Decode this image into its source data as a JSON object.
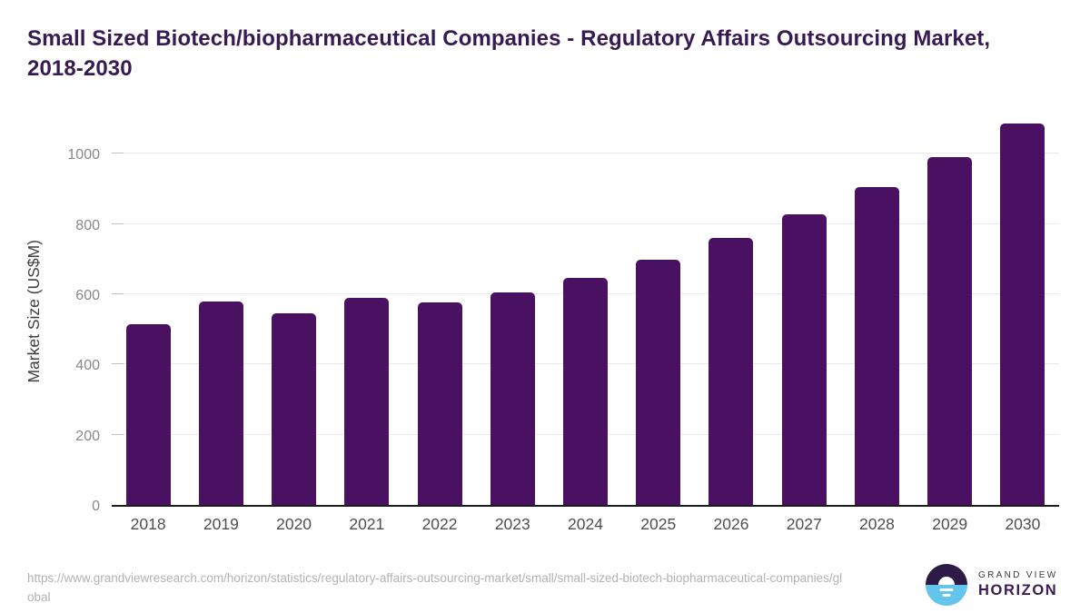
{
  "header": {
    "title_line1": "Small Sized Biotech/biopharmaceutical Companies - Regulatory Affairs Outsourcing Market,",
    "title_line2": "2018-2030"
  },
  "chart_data": {
    "type": "bar",
    "title": "Small Sized Biotech/biopharmaceutical Companies - Regulatory Affairs Outsourcing Market, 2018-2030",
    "categories": [
      "2018",
      "2019",
      "2020",
      "2021",
      "2022",
      "2023",
      "2024",
      "2025",
      "2026",
      "2027",
      "2028",
      "2029",
      "2030"
    ],
    "values": [
      515,
      580,
      545,
      589,
      577,
      605,
      646,
      698,
      760,
      828,
      906,
      991,
      1087
    ],
    "xlabel": "",
    "ylabel": "Market Size (US$M)",
    "ylim": [
      0,
      1110
    ],
    "yticks": [
      0,
      200,
      400,
      600,
      800,
      1000
    ],
    "grid": "horizontal",
    "legend_position": "none",
    "bar_color": "#4A1162"
  },
  "colors": {
    "title_text": "#381A52",
    "bar": "#4A1162",
    "axis_line": "#1c1c1c",
    "gridline": "#e9e9e9",
    "y_tick_text": "#87888b",
    "x_tick_text": "#4d4e53",
    "url_text": "#b2b2b5",
    "logo_dark": "#2E1A47",
    "logo_blue": "#63C5EC",
    "logo_horizon_text": "#3A1C55"
  },
  "footer": {
    "source_url": "https://www.grandviewresearch.com/horizon/statistics/regulatory-affairs-outsourcing-market/small/small-sized-biotech-biopharmaceutical-companies/global",
    "logo": {
      "brand_line1": "GRAND VIEW",
      "brand_line2": "HORIZON"
    }
  }
}
